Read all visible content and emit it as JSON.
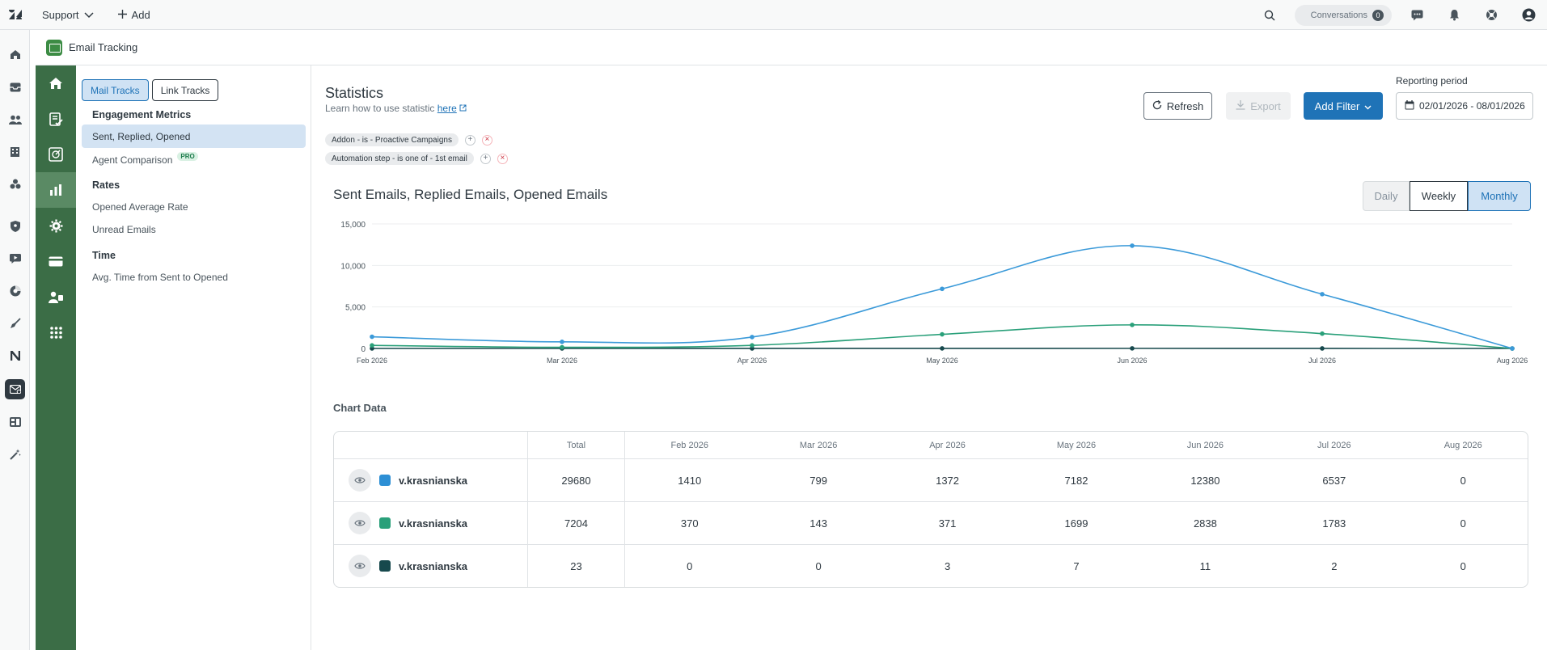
{
  "topbar": {
    "workspace": "Support",
    "add_label": "Add",
    "conversations_label": "Conversations",
    "conversations_count": "0"
  },
  "app": {
    "title": "Email Tracking"
  },
  "sidebar": {
    "tabs": [
      {
        "label": "Mail Tracks",
        "active": true
      },
      {
        "label": "Link Tracks",
        "active": false
      }
    ],
    "sections": [
      {
        "heading": "Engagement Metrics",
        "items": [
          {
            "label": "Sent, Replied, Opened",
            "active": true
          },
          {
            "label": "Agent Comparison",
            "badge": "PRO"
          }
        ]
      },
      {
        "heading": "Rates",
        "items": [
          {
            "label": "Opened Average Rate"
          },
          {
            "label": "Unread Emails"
          }
        ]
      },
      {
        "heading": "Time",
        "items": [
          {
            "label": "Avg. Time from Sent to Opened"
          }
        ]
      }
    ]
  },
  "main": {
    "title": "Statistics",
    "learn_text": "Learn how to use statistic",
    "learn_link": "here",
    "filters": [
      "Addon - is - Proactive Campaigns",
      "Automation step - is one of - 1st email"
    ],
    "refresh_label": "Refresh",
    "export_label": "Export",
    "add_filter_label": "Add Filter",
    "reporting_label": "Reporting period",
    "reporting_value": "02/01/2026 - 08/01/2026",
    "chart_title": "Sent Emails, Replied Emails, Opened Emails",
    "granularity": [
      "Daily",
      "Weekly",
      "Monthly"
    ],
    "granularity_selected": "Monthly",
    "chart_data_title": "Chart Data"
  },
  "chart_data": {
    "type": "line",
    "x": [
      "Feb 2026",
      "Mar 2026",
      "Apr 2026",
      "May 2026",
      "Jun 2026",
      "Jul 2026",
      "Aug 2026"
    ],
    "series": [
      {
        "color": "#3b9ad9",
        "values": [
          1410,
          799,
          1372,
          7182,
          12380,
          6537,
          0
        ]
      },
      {
        "color": "#2aa07a",
        "values": [
          370,
          143,
          371,
          1699,
          2838,
          1783,
          0
        ]
      },
      {
        "color": "#17494d",
        "values": [
          0,
          0,
          3,
          7,
          11,
          2,
          0
        ]
      }
    ],
    "yticks": [
      "0",
      "5,000",
      "10,000",
      "15,000"
    ],
    "ylim": [
      0,
      15000
    ],
    "grid": true
  },
  "table": {
    "headers": [
      "",
      "Total",
      "Feb 2026",
      "Mar 2026",
      "Apr 2026",
      "May 2026",
      "Jun 2026",
      "Jul 2026",
      "Aug 2026"
    ],
    "rows": [
      {
        "name": "v.krasnianska",
        "color": "#2d8fd5",
        "cells": [
          "29680",
          "1410",
          "799",
          "1372",
          "7182",
          "12380",
          "6537",
          "0"
        ]
      },
      {
        "name": "v.krasnianska",
        "color": "#2aa07a",
        "cells": [
          "7204",
          "370",
          "143",
          "371",
          "1699",
          "2838",
          "1783",
          "0"
        ]
      },
      {
        "name": "v.krasnianska",
        "color": "#17494d",
        "cells": [
          "23",
          "0",
          "0",
          "3",
          "7",
          "11",
          "2",
          "0"
        ]
      }
    ]
  }
}
